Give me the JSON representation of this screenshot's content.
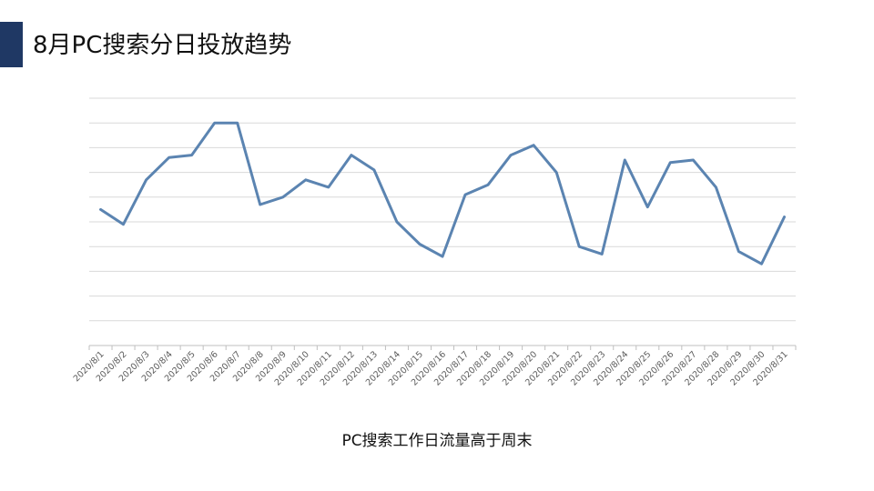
{
  "page": {
    "title": "8月PC搜索分日投放趋势",
    "caption": "PC搜索工作日流量高于周末"
  },
  "colors": {
    "accent": "#1f3864",
    "line": "#5b84b1",
    "grid": "#d9d9d9"
  },
  "chart_data": {
    "type": "line",
    "title": "",
    "xlabel": "",
    "ylabel": "",
    "grid": true,
    "legend": "none",
    "ylim": [
      0,
      10
    ],
    "categories": [
      "2020/8/1",
      "2020/8/2",
      "2020/8/3",
      "2020/8/4",
      "2020/8/5",
      "2020/8/6",
      "2020/8/7",
      "2020/8/8",
      "2020/8/9",
      "2020/8/10",
      "2020/8/11",
      "2020/8/12",
      "2020/8/13",
      "2020/8/14",
      "2020/8/15",
      "2020/8/16",
      "2020/8/17",
      "2020/8/18",
      "2020/8/19",
      "2020/8/20",
      "2020/8/21",
      "2020/8/22",
      "2020/8/23",
      "2020/8/24",
      "2020/8/25",
      "2020/8/26",
      "2020/8/27",
      "2020/8/28",
      "2020/8/29",
      "2020/8/30",
      "2020/8/31"
    ],
    "series": [
      {
        "values": [
          5.5,
          4.9,
          6.7,
          7.6,
          7.7,
          9.0,
          9.0,
          5.7,
          6.0,
          6.7,
          6.4,
          7.7,
          7.1,
          5.0,
          4.1,
          3.6,
          6.1,
          6.5,
          7.7,
          8.1,
          7.0,
          4.0,
          3.7,
          7.5,
          5.6,
          7.4,
          7.5,
          6.4,
          3.8,
          3.3,
          5.2
        ]
      }
    ]
  }
}
